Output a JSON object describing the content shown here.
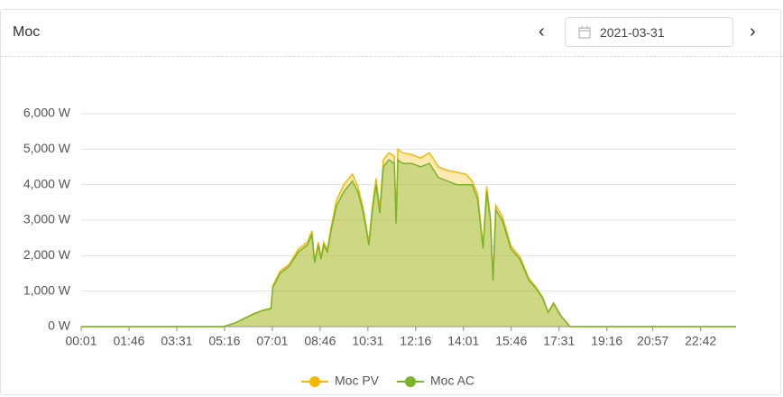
{
  "header": {
    "title": "Moc",
    "date": "2021-03-31"
  },
  "chart_data": {
    "type": "area",
    "x": [
      1,
      313,
      339,
      379,
      399,
      418,
      422,
      438,
      458,
      478,
      498,
      508,
      514,
      522,
      528,
      534,
      542,
      550,
      562,
      578,
      597,
      609,
      621,
      633,
      641,
      649,
      657,
      665,
      677,
      689,
      693,
      697,
      707,
      727,
      747,
      766,
      786,
      806,
      826,
      846,
      860,
      872,
      884,
      892,
      900,
      906,
      912,
      926,
      945,
      965,
      985,
      999,
      1015,
      1027,
      1039,
      1055,
      1075,
      1440
    ],
    "series": [
      {
        "name": "Moc PV",
        "color": "#f5b800",
        "values": [
          0,
          0,
          100,
          360,
          460,
          520,
          1150,
          1560,
          1760,
          2180,
          2380,
          2700,
          1850,
          2380,
          1960,
          2380,
          2170,
          2800,
          3550,
          4000,
          4300,
          3950,
          3320,
          2380,
          3420,
          4180,
          3320,
          4700,
          4900,
          4800,
          3000,
          5000,
          4900,
          4850,
          4750,
          4900,
          4500,
          4400,
          4350,
          4300,
          4100,
          3750,
          2280,
          3950,
          3100,
          1350,
          3420,
          3120,
          2280,
          1970,
          1350,
          1140,
          830,
          410,
          670,
          310,
          0,
          0
        ]
      },
      {
        "name": "Moc AC",
        "color": "#78b52a",
        "values": [
          0,
          0,
          100,
          350,
          450,
          500,
          1100,
          1500,
          1700,
          2100,
          2300,
          2600,
          1800,
          2300,
          1900,
          2300,
          2100,
          2700,
          3400,
          3800,
          4100,
          3800,
          3200,
          2300,
          3300,
          4000,
          3200,
          4500,
          4700,
          4600,
          2900,
          4700,
          4600,
          4600,
          4500,
          4600,
          4200,
          4100,
          4000,
          4000,
          4000,
          3600,
          2200,
          3800,
          3000,
          1300,
          3300,
          3000,
          2200,
          1900,
          1300,
          1100,
          800,
          400,
          650,
          300,
          0,
          0
        ]
      }
    ],
    "xlim": [
      1,
      1440
    ],
    "ylim": [
      0,
      6000
    ],
    "xticks": [
      {
        "value": 1,
        "label": "00:01"
      },
      {
        "value": 106,
        "label": "01:46"
      },
      {
        "value": 211,
        "label": "03:31"
      },
      {
        "value": 316,
        "label": "05:16"
      },
      {
        "value": 421,
        "label": "07:01"
      },
      {
        "value": 526,
        "label": "08:46"
      },
      {
        "value": 631,
        "label": "10:31"
      },
      {
        "value": 736,
        "label": "12:16"
      },
      {
        "value": 841,
        "label": "14:01"
      },
      {
        "value": 946,
        "label": "15:46"
      },
      {
        "value": 1051,
        "label": "17:31"
      },
      {
        "value": 1156,
        "label": "19:16"
      },
      {
        "value": 1257,
        "label": "20:57"
      },
      {
        "value": 1362,
        "label": "22:42"
      }
    ],
    "yticks": [
      {
        "value": 0,
        "label": "0 W"
      },
      {
        "value": 1000,
        "label": "1,000 W"
      },
      {
        "value": 2000,
        "label": "2,000 W"
      },
      {
        "value": 3000,
        "label": "3,000 W"
      },
      {
        "value": 4000,
        "label": "4,000 W"
      },
      {
        "value": 5000,
        "label": "5,000 W"
      },
      {
        "value": 6000,
        "label": "6,000 W"
      }
    ],
    "grid": true
  }
}
